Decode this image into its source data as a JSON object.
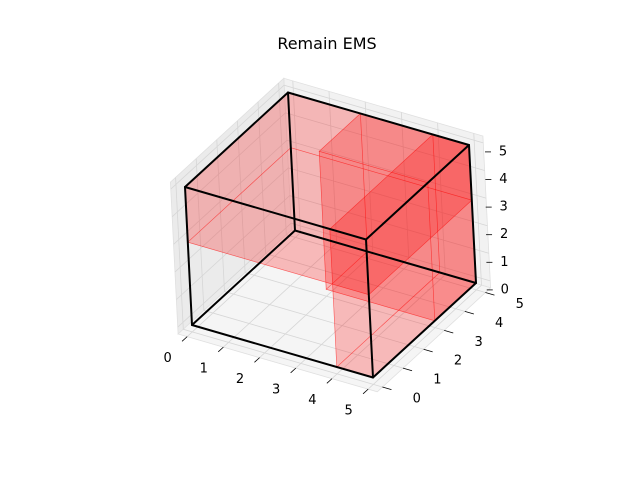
{
  "chart_data": {
    "type": "3d-box",
    "title": "Remain EMS",
    "xlabel": "",
    "ylabel": "",
    "zlabel": "",
    "xlim": [
      0,
      5
    ],
    "ylim": [
      0,
      5
    ],
    "zlim": [
      0,
      5
    ],
    "x_ticks": [
      "0",
      "1",
      "2",
      "3",
      "4",
      "5"
    ],
    "y_ticks": [
      "0",
      "1",
      "2",
      "3",
      "4",
      "5"
    ],
    "z_ticks": [
      "0",
      "1",
      "2",
      "3",
      "4",
      "5"
    ],
    "grid": true,
    "container": {
      "min": [
        0,
        0,
        0
      ],
      "max": [
        5,
        5,
        5
      ],
      "edge_color": "#000000"
    },
    "boxes": [
      {
        "min": [
          0,
          0,
          3
        ],
        "max": [
          5,
          5,
          5
        ],
        "color": "#ff0000"
      },
      {
        "min": [
          4,
          0,
          0
        ],
        "max": [
          5,
          5,
          5
        ],
        "color": "#ff0000"
      },
      {
        "min": [
          2,
          3,
          0
        ],
        "max": [
          5,
          5,
          5
        ],
        "color": "#ff0000"
      }
    ]
  }
}
